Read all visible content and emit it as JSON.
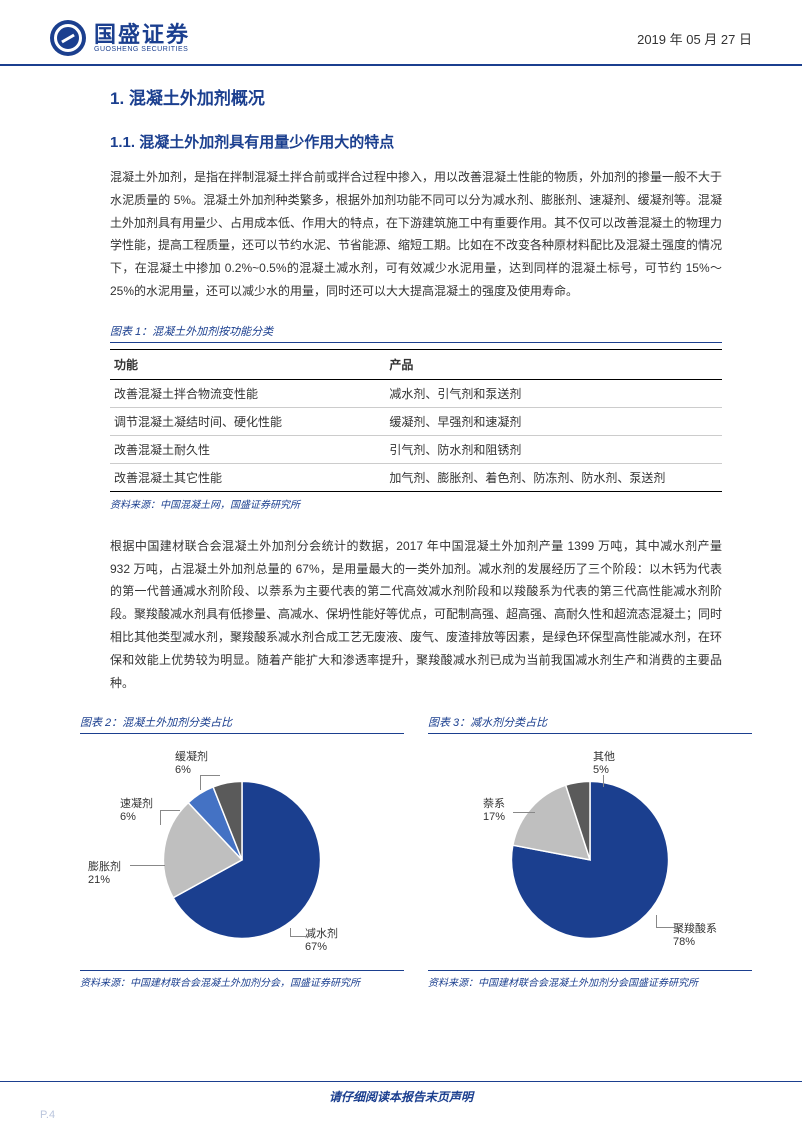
{
  "header": {
    "logo_cn": "国盛证券",
    "logo_en": "GUOSHENG SECURITIES",
    "date": "2019 年 05 月 27 日"
  },
  "section1": {
    "num": "1.",
    "title": "混凝土外加剂概况"
  },
  "section11": {
    "num": "1.1.",
    "title": "混凝土外加剂具有用量少作用大的特点"
  },
  "para1": "混凝土外加剂，是指在拌制混凝土拌合前或拌合过程中掺入，用以改善混凝土性能的物质，外加剂的掺量一般不大于水泥质量的 5%。混凝土外加剂种类繁多，根据外加剂功能不同可以分为减水剂、膨胀剂、速凝剂、缓凝剂等。混凝土外加剂具有用量少、占用成本低、作用大的特点，在下游建筑施工中有重要作用。其不仅可以改善混凝土的物理力学性能，提高工程质量，还可以节约水泥、节省能源、缩短工期。比如在不改变各种原材料配比及混凝土强度的情况下，在混凝土中掺加 0.2%~0.5%的混凝土减水剂，可有效减少水泥用量，达到同样的混凝土标号，可节约 15%～25%的水泥用量，还可以减少水的用量，同时还可以大大提高混凝土的强度及使用寿命。",
  "table1": {
    "caption": "图表 1：混凝土外加剂按功能分类",
    "headers": [
      "功能",
      "产品"
    ],
    "rows": [
      [
        "改善混凝土拌合物流变性能",
        "减水剂、引气剂和泵送剂"
      ],
      [
        "调节混凝土凝结时间、硬化性能",
        "缓凝剂、早强剂和速凝剂"
      ],
      [
        "改善混凝土耐久性",
        "引气剂、防水剂和阻锈剂"
      ],
      [
        "改善混凝土其它性能",
        "加气剂、膨胀剂、着色剂、防冻剂、防水剂、泵送剂"
      ]
    ],
    "source": "资料来源：中国混凝土网，国盛证券研究所"
  },
  "para2": "根据中国建材联合会混凝土外加剂分会统计的数据，2017 年中国混凝土外加剂产量 1399 万吨，其中减水剂产量 932 万吨，占混凝土外加剂总量的 67%，是用量最大的一类外加剂。减水剂的发展经历了三个阶段：以木钙为代表的第一代普通减水剂阶段、以萘系为主要代表的第二代高效减水剂阶段和以羧酸系为代表的第三代高性能减水剂阶段。聚羧酸减水剂具有低掺量、高减水、保坍性能好等优点，可配制高强、超高强、高耐久性和超流态混凝土；同时相比其他类型减水剂，聚羧酸系减水剂合成工艺无废液、废气、废渣排放等因素，是绿色环保型高性能减水剂，在环保和效能上优势较为明显。随着产能扩大和渗透率提升，聚羧酸减水剂已成为当前我国减水剂生产和消费的主要品种。",
  "chart2": {
    "caption": "图表 2：混凝土外加剂分类占比",
    "type": "pie",
    "slices": [
      {
        "label": "减水剂",
        "value": 67,
        "color": "#1b3f8f"
      },
      {
        "label": "膨胀剂",
        "value": 21,
        "color": "#bfbfbf"
      },
      {
        "label": "速凝剂",
        "value": 6,
        "color": "#4472c4"
      },
      {
        "label": "缓凝剂",
        "value": 6,
        "color": "#5a5a5a"
      }
    ],
    "source": "资料来源：中国建材联合会混凝土外加剂分会，国盛证券研究所"
  },
  "chart3": {
    "caption": "图表 3：减水剂分类占比",
    "type": "pie",
    "slices": [
      {
        "label": "聚羧酸系",
        "value": 78,
        "color": "#1b3f8f"
      },
      {
        "label": "萘系",
        "value": 17,
        "color": "#bfbfbf"
      },
      {
        "label": "其他",
        "value": 5,
        "color": "#5a5a5a"
      }
    ],
    "source": "资料来源：中国建材联合会混凝土外加剂分会国盛证券研究所"
  },
  "footer": {
    "disclaimer": "请仔细阅读本报告末页声明",
    "page": "P.4"
  }
}
